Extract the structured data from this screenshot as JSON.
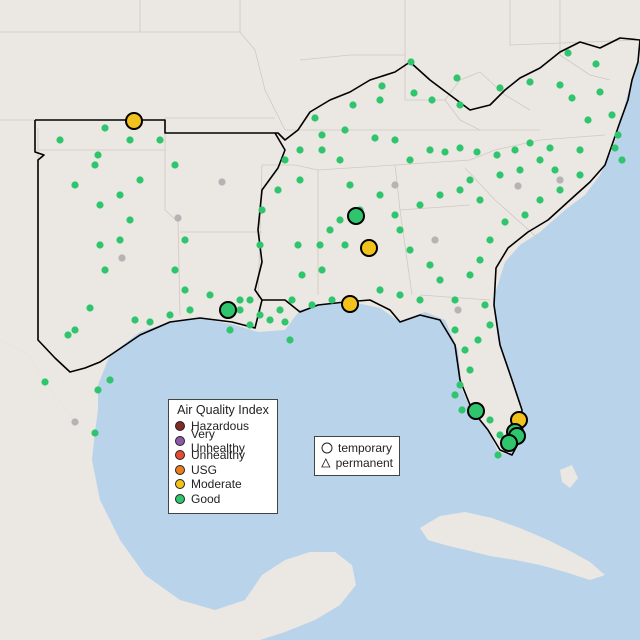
{
  "legend": {
    "title": "Air Quality Index",
    "items": [
      {
        "label": "Hazardous",
        "color": "#7e2a26"
      },
      {
        "label": "Very Unhealthy",
        "color": "#8e58a6"
      },
      {
        "label": "Unhealthy",
        "color": "#e74a33"
      },
      {
        "label": "USG",
        "color": "#ec7d1c"
      },
      {
        "label": "Moderate",
        "color": "#f1c21b"
      },
      {
        "label": "Good",
        "color": "#2ec56d"
      }
    ]
  },
  "marker_types": {
    "temporary_label": "temporary",
    "permanent_label": "permanent",
    "temporary_icon": "circle-icon",
    "permanent_icon": "triangle-icon"
  },
  "colors": {
    "water": "#b9d3ea",
    "land": "#ebe7e2",
    "good": "#2ec56d",
    "moderate": "#f1c21b",
    "offline": "#b4b4b4"
  },
  "large_sensors": [
    {
      "category": "Moderate"
    },
    {
      "category": "Good"
    },
    {
      "category": "Moderate"
    },
    {
      "category": "Good"
    },
    {
      "category": "Moderate"
    },
    {
      "category": "Good"
    },
    {
      "category": "Moderate"
    },
    {
      "category": "Good"
    },
    {
      "category": "Good"
    },
    {
      "category": "Good"
    }
  ]
}
